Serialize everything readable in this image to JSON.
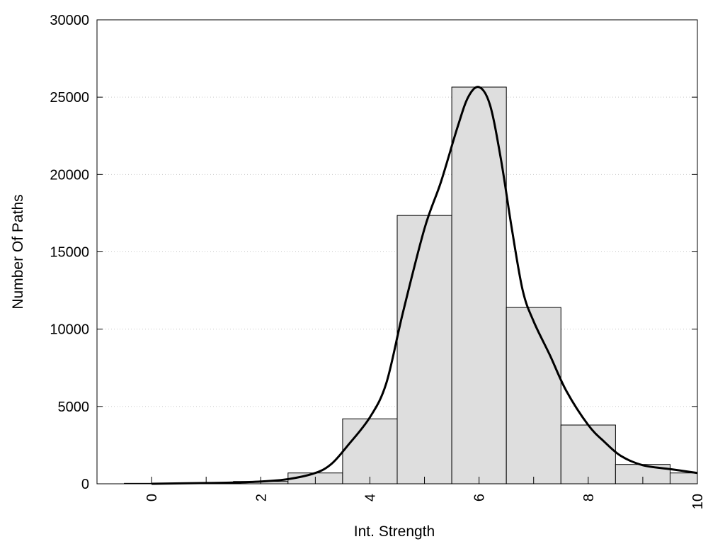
{
  "chart_data": {
    "type": "bar",
    "title": "",
    "xlabel": "Int. Strength",
    "ylabel": "Number Of Paths",
    "xlim": [
      -1,
      10
    ],
    "ylim": [
      0,
      30000
    ],
    "x_ticks": [
      0,
      2,
      4,
      6,
      8,
      10
    ],
    "y_ticks": [
      0,
      5000,
      10000,
      15000,
      20000,
      25000,
      30000
    ],
    "grid": "horizontal dotted",
    "legend": "none",
    "bar_color": "#dedede",
    "bins": [
      {
        "center": 0,
        "value": 30
      },
      {
        "center": 1,
        "value": 60
      },
      {
        "center": 2,
        "value": 150
      },
      {
        "center": 3,
        "value": 700
      },
      {
        "center": 4,
        "value": 4200
      },
      {
        "center": 5,
        "value": 17350
      },
      {
        "center": 6,
        "value": 25650
      },
      {
        "center": 7,
        "value": 11400
      },
      {
        "center": 8,
        "value": 3800
      },
      {
        "center": 9,
        "value": 1250
      },
      {
        "center": 10,
        "value": 700
      }
    ],
    "curve": {
      "x": [
        0,
        1,
        1.5,
        2,
        2.5,
        3,
        3.3,
        3.6,
        4,
        4.3,
        4.6,
        5,
        5.3,
        5.6,
        5.8,
        6,
        6.2,
        6.4,
        6.6,
        6.8,
        7,
        7.3,
        7.6,
        8,
        8.3,
        8.6,
        9,
        9.5,
        10
      ],
      "y": [
        0,
        50,
        80,
        150,
        300,
        700,
        1300,
        2500,
        4300,
        6500,
        11000,
        16500,
        19500,
        23000,
        25000,
        25650,
        24500,
        21000,
        16500,
        12500,
        10500,
        8300,
        6000,
        3800,
        2700,
        1800,
        1200,
        950,
        700
      ]
    }
  }
}
